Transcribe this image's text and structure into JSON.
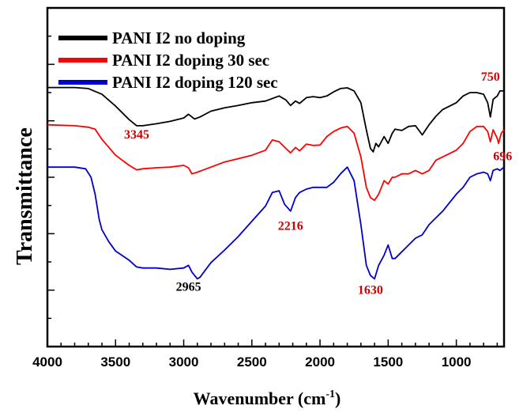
{
  "chart_data": {
    "type": "line",
    "title": "",
    "xlabel": "Wavenumber (cm",
    "xlabel_sup": "-1",
    "xlabel_end": ")",
    "ylabel": "Transmittance",
    "xlim": [
      4000,
      650
    ],
    "x_reversed": true,
    "ylim": [
      0,
      1
    ],
    "y_ticks_labeled": false,
    "x_ticks": [
      "4000",
      "3500",
      "3000",
      "2500",
      "2000",
      "1500",
      "1000"
    ],
    "legend_position": "top-left",
    "series": [
      {
        "name": "PANI I2 no doping",
        "color": "#000000",
        "points": [
          [
            4000,
            0.765
          ],
          [
            3800,
            0.765
          ],
          [
            3700,
            0.762
          ],
          [
            3600,
            0.745
          ],
          [
            3500,
            0.71
          ],
          [
            3400,
            0.67
          ],
          [
            3345,
            0.652
          ],
          [
            3300,
            0.652
          ],
          [
            3200,
            0.658
          ],
          [
            3100,
            0.665
          ],
          [
            3000,
            0.675
          ],
          [
            2965,
            0.686
          ],
          [
            2920,
            0.672
          ],
          [
            2880,
            0.678
          ],
          [
            2800,
            0.695
          ],
          [
            2700,
            0.705
          ],
          [
            2600,
            0.712
          ],
          [
            2500,
            0.72
          ],
          [
            2400,
            0.725
          ],
          [
            2300,
            0.74
          ],
          [
            2250,
            0.728
          ],
          [
            2216,
            0.712
          ],
          [
            2180,
            0.725
          ],
          [
            2150,
            0.718
          ],
          [
            2100,
            0.735
          ],
          [
            2050,
            0.738
          ],
          [
            2000,
            0.735
          ],
          [
            1950,
            0.74
          ],
          [
            1900,
            0.752
          ],
          [
            1850,
            0.762
          ],
          [
            1800,
            0.764
          ],
          [
            1750,
            0.755
          ],
          [
            1700,
            0.72
          ],
          [
            1660,
            0.64
          ],
          [
            1630,
            0.585
          ],
          [
            1610,
            0.575
          ],
          [
            1590,
            0.6
          ],
          [
            1570,
            0.59
          ],
          [
            1530,
            0.62
          ],
          [
            1500,
            0.6
          ],
          [
            1470,
            0.63
          ],
          [
            1450,
            0.642
          ],
          [
            1400,
            0.638
          ],
          [
            1350,
            0.65
          ],
          [
            1300,
            0.652
          ],
          [
            1250,
            0.625
          ],
          [
            1200,
            0.655
          ],
          [
            1150,
            0.68
          ],
          [
            1100,
            0.7
          ],
          [
            1000,
            0.72
          ],
          [
            950,
            0.74
          ],
          [
            900,
            0.75
          ],
          [
            850,
            0.75
          ],
          [
            800,
            0.745
          ],
          [
            770,
            0.72
          ],
          [
            750,
            0.678
          ],
          [
            730,
            0.73
          ],
          [
            700,
            0.74
          ],
          [
            680,
            0.755
          ],
          [
            650,
            0.755
          ]
        ]
      },
      {
        "name": "PANI I2 doping 30 sec",
        "color": "#ff0000",
        "points": [
          [
            4000,
            0.655
          ],
          [
            3800,
            0.652
          ],
          [
            3700,
            0.648
          ],
          [
            3650,
            0.642
          ],
          [
            3600,
            0.612
          ],
          [
            3500,
            0.565
          ],
          [
            3400,
            0.535
          ],
          [
            3345,
            0.522
          ],
          [
            3300,
            0.525
          ],
          [
            3200,
            0.528
          ],
          [
            3100,
            0.53
          ],
          [
            3000,
            0.535
          ],
          [
            2965,
            0.528
          ],
          [
            2940,
            0.51
          ],
          [
            2900,
            0.515
          ],
          [
            2800,
            0.53
          ],
          [
            2700,
            0.545
          ],
          [
            2600,
            0.555
          ],
          [
            2500,
            0.565
          ],
          [
            2400,
            0.58
          ],
          [
            2350,
            0.61
          ],
          [
            2300,
            0.605
          ],
          [
            2250,
            0.585
          ],
          [
            2216,
            0.572
          ],
          [
            2180,
            0.588
          ],
          [
            2150,
            0.578
          ],
          [
            2100,
            0.598
          ],
          [
            2050,
            0.594
          ],
          [
            2000,
            0.595
          ],
          [
            1950,
            0.62
          ],
          [
            1900,
            0.635
          ],
          [
            1850,
            0.645
          ],
          [
            1800,
            0.65
          ],
          [
            1750,
            0.63
          ],
          [
            1700,
            0.56
          ],
          [
            1660,
            0.47
          ],
          [
            1630,
            0.44
          ],
          [
            1600,
            0.432
          ],
          [
            1570,
            0.45
          ],
          [
            1530,
            0.49
          ],
          [
            1500,
            0.48
          ],
          [
            1470,
            0.5
          ],
          [
            1450,
            0.5
          ],
          [
            1400,
            0.51
          ],
          [
            1350,
            0.51
          ],
          [
            1300,
            0.52
          ],
          [
            1250,
            0.51
          ],
          [
            1200,
            0.52
          ],
          [
            1150,
            0.55
          ],
          [
            1100,
            0.56
          ],
          [
            1000,
            0.58
          ],
          [
            950,
            0.6
          ],
          [
            900,
            0.635
          ],
          [
            850,
            0.65
          ],
          [
            800,
            0.65
          ],
          [
            770,
            0.635
          ],
          [
            750,
            0.605
          ],
          [
            730,
            0.64
          ],
          [
            700,
            0.615
          ],
          [
            690,
            0.6
          ],
          [
            670,
            0.63
          ],
          [
            650,
            0.64
          ]
        ]
      },
      {
        "name": "PANI I2 doping 120 sec",
        "color": "#0000cc",
        "points": [
          [
            4000,
            0.53
          ],
          [
            3800,
            0.53
          ],
          [
            3720,
            0.525
          ],
          [
            3680,
            0.5
          ],
          [
            3650,
            0.45
          ],
          [
            3620,
            0.375
          ],
          [
            3600,
            0.345
          ],
          [
            3550,
            0.31
          ],
          [
            3500,
            0.282
          ],
          [
            3400,
            0.255
          ],
          [
            3345,
            0.235
          ],
          [
            3300,
            0.232
          ],
          [
            3200,
            0.232
          ],
          [
            3100,
            0.228
          ],
          [
            3000,
            0.232
          ],
          [
            2965,
            0.24
          ],
          [
            2940,
            0.22
          ],
          [
            2900,
            0.2
          ],
          [
            2880,
            0.205
          ],
          [
            2800,
            0.248
          ],
          [
            2700,
            0.285
          ],
          [
            2600,
            0.325
          ],
          [
            2500,
            0.37
          ],
          [
            2400,
            0.415
          ],
          [
            2350,
            0.455
          ],
          [
            2300,
            0.46
          ],
          [
            2260,
            0.42
          ],
          [
            2216,
            0.4
          ],
          [
            2180,
            0.44
          ],
          [
            2150,
            0.455
          ],
          [
            2100,
            0.465
          ],
          [
            2050,
            0.47
          ],
          [
            2000,
            0.47
          ],
          [
            1950,
            0.47
          ],
          [
            1900,
            0.485
          ],
          [
            1850,
            0.51
          ],
          [
            1800,
            0.53
          ],
          [
            1750,
            0.49
          ],
          [
            1700,
            0.36
          ],
          [
            1660,
            0.24
          ],
          [
            1630,
            0.21
          ],
          [
            1600,
            0.2
          ],
          [
            1570,
            0.24
          ],
          [
            1530,
            0.27
          ],
          [
            1500,
            0.3
          ],
          [
            1470,
            0.26
          ],
          [
            1450,
            0.26
          ],
          [
            1400,
            0.28
          ],
          [
            1350,
            0.3
          ],
          [
            1300,
            0.32
          ],
          [
            1250,
            0.33
          ],
          [
            1200,
            0.36
          ],
          [
            1150,
            0.38
          ],
          [
            1100,
            0.4
          ],
          [
            1000,
            0.45
          ],
          [
            950,
            0.47
          ],
          [
            900,
            0.5
          ],
          [
            850,
            0.51
          ],
          [
            800,
            0.515
          ],
          [
            770,
            0.51
          ],
          [
            750,
            0.49
          ],
          [
            730,
            0.52
          ],
          [
            700,
            0.525
          ],
          [
            680,
            0.52
          ],
          [
            650,
            0.53
          ]
        ]
      }
    ],
    "annotations": [
      {
        "text": "3345",
        "color": "#cc0000",
        "x": 3345,
        "y": 0.615
      },
      {
        "text": "750",
        "color": "#cc0000",
        "x": 750,
        "y": 0.785
      },
      {
        "text": "696",
        "color": "#cc0000",
        "x": 660,
        "y": 0.55
      },
      {
        "text": "2216",
        "color": "#cc0000",
        "x": 2216,
        "y": 0.345
      },
      {
        "text": "2965",
        "color": "#000000",
        "x": 2965,
        "y": 0.165
      },
      {
        "text": "1630",
        "color": "#cc0000",
        "x": 1630,
        "y": 0.155
      }
    ]
  }
}
